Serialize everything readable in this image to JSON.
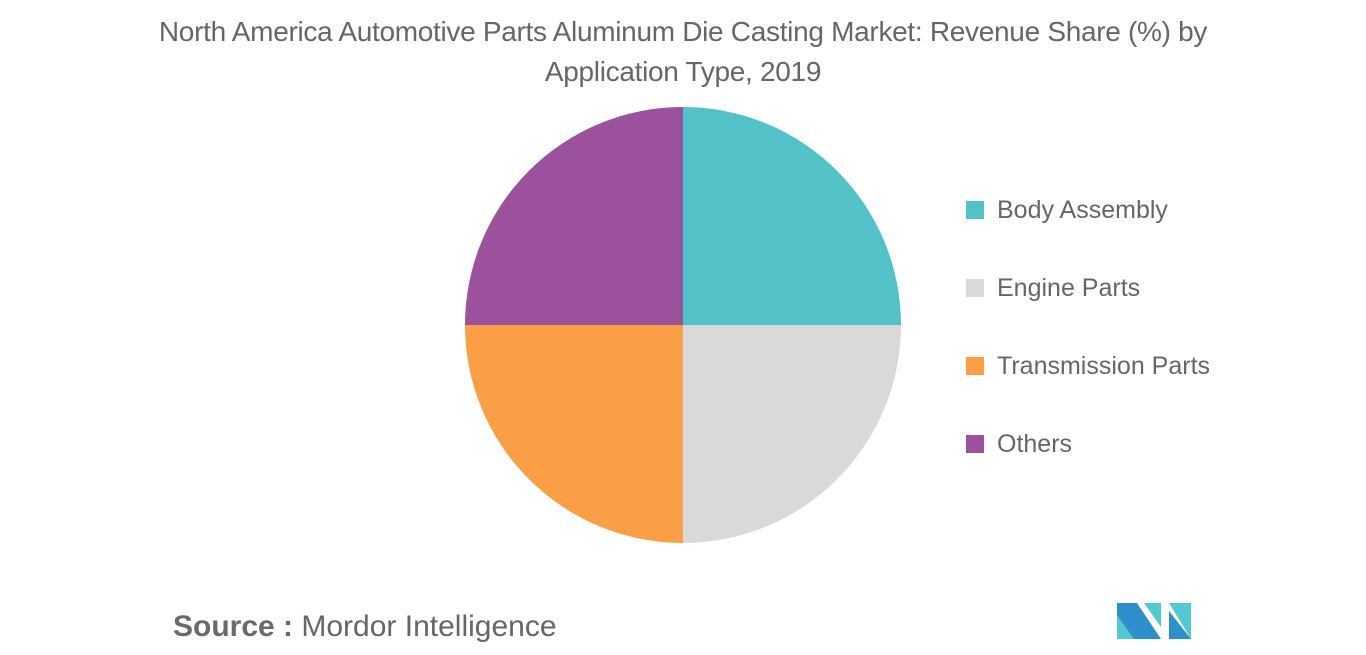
{
  "title": {
    "line1": "North America Automotive Parts Aluminum Die Casting Market: Revenue Share (%) by",
    "line2": "Application Type, 2019"
  },
  "legend": {
    "items": [
      {
        "label": "Body Assembly",
        "color": "#52c2c8"
      },
      {
        "label": "Engine Parts",
        "color": "#d9d9d9"
      },
      {
        "label": "Transmission Parts",
        "color": "#fb9f47"
      },
      {
        "label": "Others",
        "color": "#9b519c"
      }
    ]
  },
  "source": {
    "key": "Source :",
    "value": "Mordor Intelligence"
  },
  "logo": {
    "icon": "mordor-intelligence-logo-icon",
    "colors": [
      "#2f8fcc",
      "#52c8d0"
    ]
  },
  "chart_data": {
    "type": "pie",
    "title": "North America Automotive Parts Aluminum Die Casting Market: Revenue Share (%) by Application Type, 2019",
    "categories": [
      "Body Assembly",
      "Engine Parts",
      "Transmission Parts",
      "Others"
    ],
    "values": [
      25,
      25,
      25,
      25
    ],
    "colors": [
      "#52c2c8",
      "#d9d9d9",
      "#fb9f47",
      "#9b519c"
    ],
    "start_angle_deg": 90,
    "direction": "clockwise",
    "legend_position": "right",
    "data_labels": false
  }
}
